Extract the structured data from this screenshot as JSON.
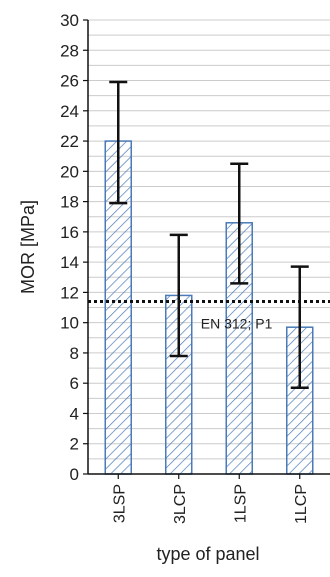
{
  "chart_data": {
    "type": "bar",
    "title": "",
    "xlabel": "type of panel",
    "ylabel": "MOR [MPa]",
    "categories": [
      "3LSP",
      "3LCP",
      "1LSP",
      "1LCP"
    ],
    "values": [
      22.0,
      11.8,
      16.6,
      9.7
    ],
    "error_low": [
      17.9,
      7.8,
      12.6,
      5.7
    ],
    "error_high": [
      25.9,
      15.8,
      20.5,
      13.7
    ],
    "ylim": [
      0,
      30
    ],
    "yticks": [
      0,
      2,
      4,
      6,
      8,
      10,
      12,
      14,
      16,
      18,
      20,
      22,
      24,
      26,
      28,
      30
    ],
    "grid": true,
    "reference_line": {
      "value": 11.4,
      "label": "EN 312; P1"
    },
    "bar_fill": "hatched",
    "bar_color": "#4a7ab8"
  }
}
